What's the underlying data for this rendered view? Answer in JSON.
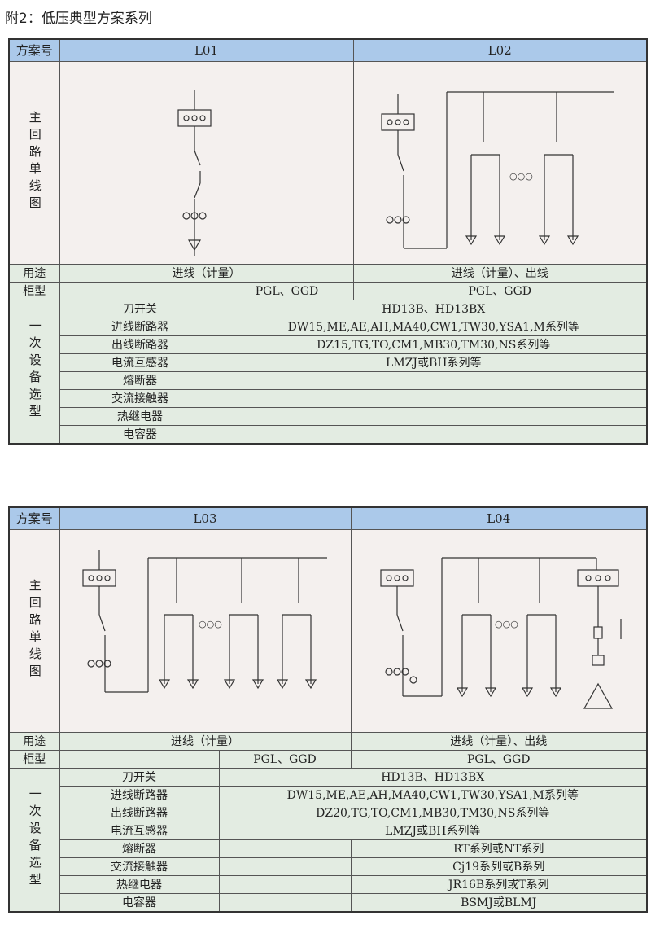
{
  "title": "附2：低压典型方案系列",
  "labels": {
    "scheme_no": "方案号",
    "diagram": "主回路单线图",
    "purpose": "用途",
    "cabinet": "柜型",
    "equipment": "一次设备选型"
  },
  "equipment_names": [
    "刀开关",
    "进线断路器",
    "出线断路器",
    "电流互感器",
    "熔断器",
    "交流接触器",
    "热继电器",
    "电容器"
  ],
  "tables": [
    {
      "schemes": [
        "L01",
        "L02"
      ],
      "purpose": [
        "进线（计量）",
        "进线（计量）、出线"
      ],
      "cabinet": [
        "PGL、GGD",
        "PGL、GGD"
      ],
      "equipment_values": [
        "HD13B、HD13BX",
        "DW15,ME,AE,AH,MA40,CW1,TW30,YSA1,M系列等",
        "DZ15,TG,TO,CM1,MB30,TM30,NS系列等",
        "LMZJ或BH系列等",
        "",
        "",
        "",
        ""
      ]
    },
    {
      "schemes": [
        "L03",
        "L04"
      ],
      "purpose": [
        "进线（计量）",
        "进线（计量）、出线"
      ],
      "cabinet": [
        "PGL、GGD",
        "PGL、GGD"
      ],
      "equipment_values": [
        "HD13B、HD13BX",
        "DW15,ME,AE,AH,MA40,CW1,TW30,YSA1,M系列等",
        "DZ20,TG,TO,CM1,MB30,TM30,NS系列等",
        "LMZJ或BH系列等"
      ],
      "equipment_right": [
        "RT系列或NT系列",
        "Cj19系列或B系列",
        "JR16B系列或T系列",
        "BSMJ或BLMJ"
      ]
    }
  ]
}
